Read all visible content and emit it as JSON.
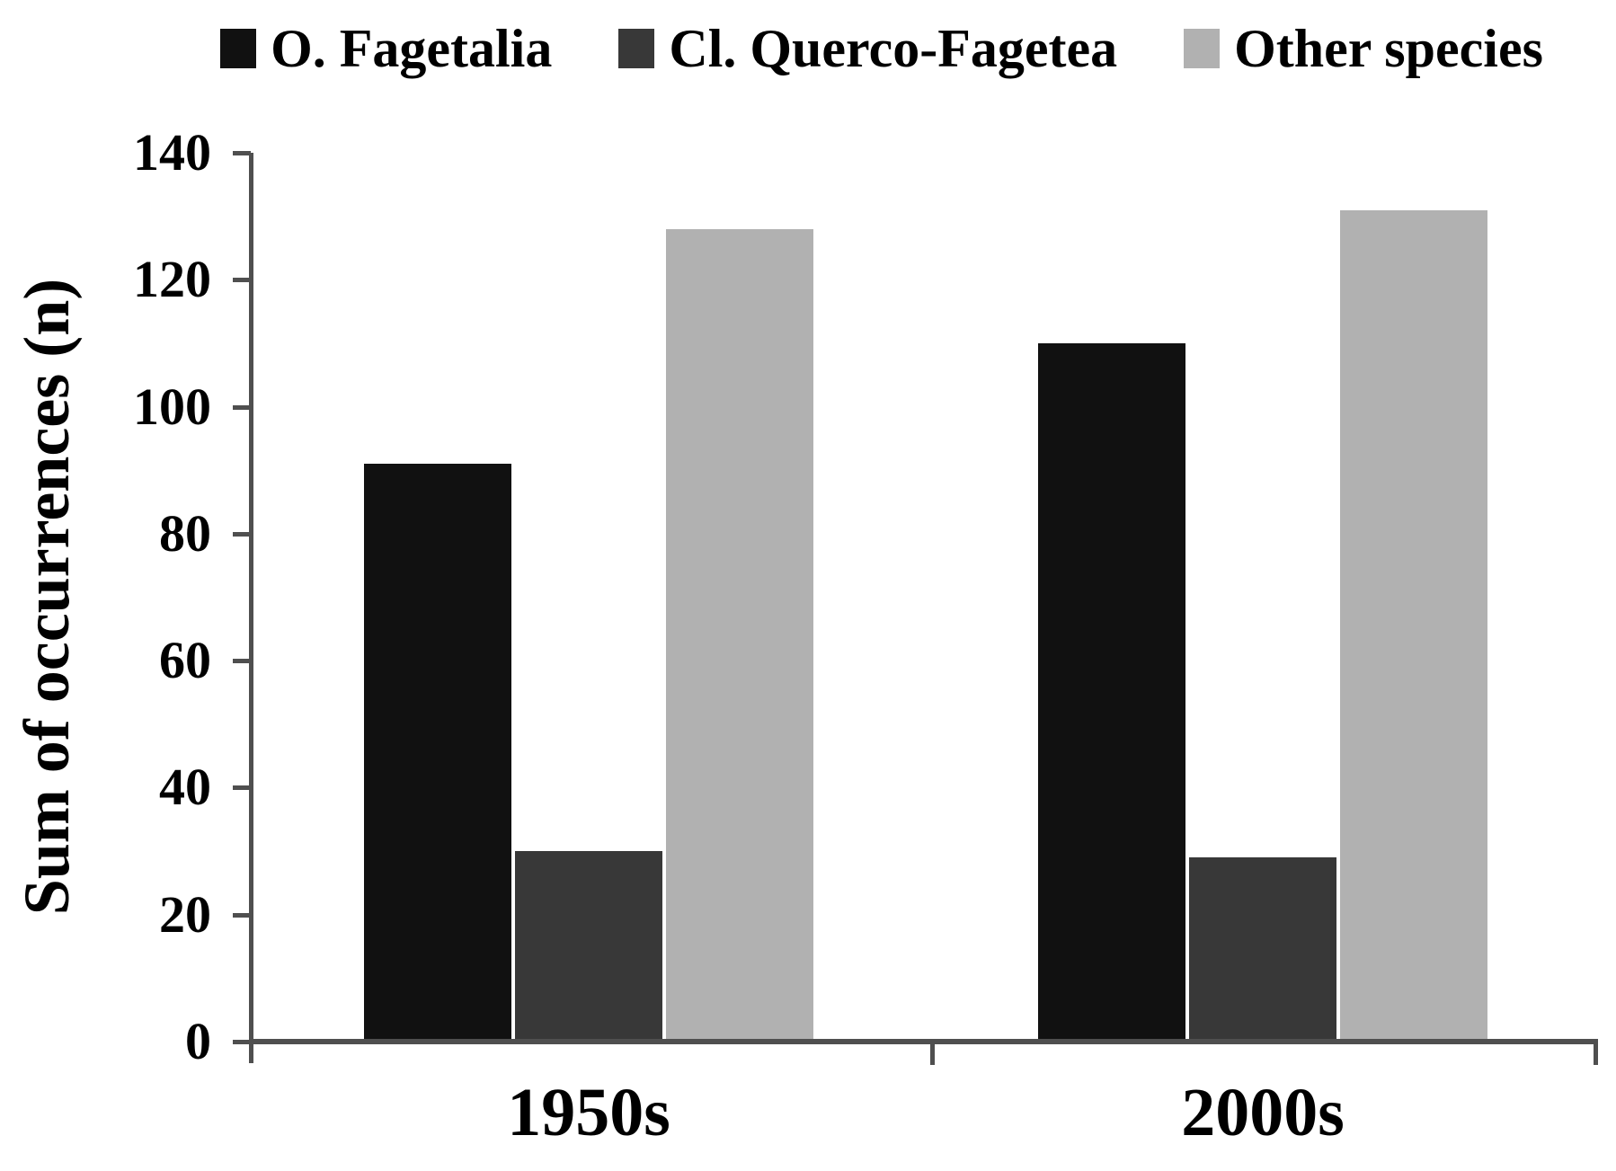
{
  "chart_data": {
    "type": "bar",
    "title": "",
    "categories": [
      "1950s",
      "2000s"
    ],
    "series": [
      {
        "name": "O. Fagetalia",
        "values": [
          91,
          110
        ],
        "color": "#111111"
      },
      {
        "name": "Cl. Querco-Fagetea",
        "values": [
          30,
          29
        ],
        "color": "#383838"
      },
      {
        "name": "Other species",
        "values": [
          128,
          131
        ],
        "color": "#b1b1b1"
      }
    ],
    "xlabel": "",
    "ylabel": "Sum of occurrences (n)",
    "ylim": [
      0,
      140
    ],
    "ytick_step": 20,
    "yticks": [
      0,
      20,
      40,
      60,
      80,
      100,
      120,
      140
    ],
    "legend_position": "top",
    "grid": false,
    "axis_color": "#4f4f4f",
    "text_color": "#000000"
  }
}
